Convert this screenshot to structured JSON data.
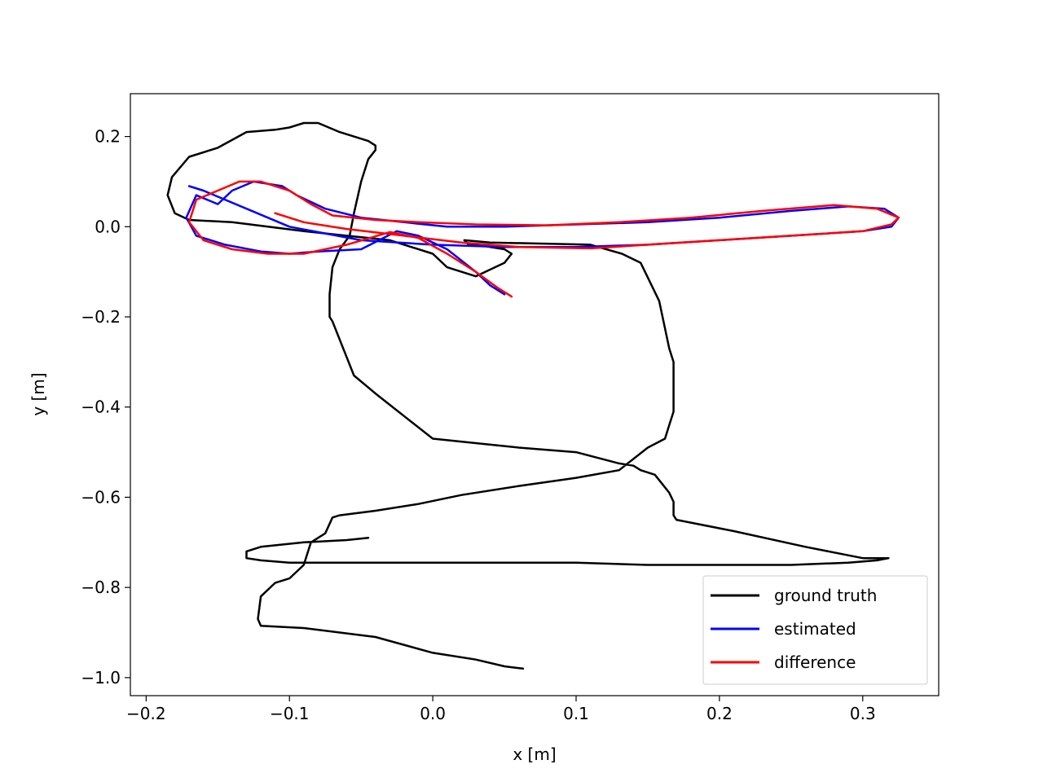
{
  "chart_data": {
    "type": "line",
    "title": "",
    "xlabel": "x [m]",
    "ylabel": "y [m]",
    "xlim": [
      -0.211,
      0.353
    ],
    "ylim": [
      -1.04,
      0.295
    ],
    "grid": false,
    "legend_position": "bottom-right",
    "xticks": [
      -0.2,
      -0.1,
      0.0,
      0.1,
      0.2,
      0.3
    ],
    "xtick_labels": [
      "−0.2",
      "−0.1",
      "0.0",
      "0.1",
      "0.2",
      "0.3"
    ],
    "yticks": [
      0.2,
      0.0,
      -0.2,
      -0.4,
      -0.6,
      -0.8,
      -1.0
    ],
    "ytick_labels": [
      "0.2",
      "0.0",
      "−0.2",
      "−0.4",
      "−0.6",
      "−0.8",
      "−1.0"
    ],
    "series": [
      {
        "name": "ground truth",
        "color": "#000000",
        "x": [
          0.063,
          0.05,
          0.03,
          0.0,
          -0.04,
          -0.09,
          -0.12,
          -0.122,
          -0.12,
          -0.11,
          -0.1,
          -0.09,
          -0.085,
          -0.075,
          -0.07,
          -0.065,
          -0.04,
          -0.01,
          0.02,
          0.06,
          0.1,
          0.13,
          0.15,
          0.162,
          0.165,
          0.168,
          0.168,
          0.165,
          0.158,
          0.145,
          0.132,
          0.11,
          0.04,
          0.022,
          0.025,
          0.03,
          0.05,
          0.055,
          0.05,
          0.03,
          0.01,
          0.0,
          -0.03,
          -0.06,
          -0.09,
          -0.115,
          -0.14,
          -0.17,
          -0.18,
          -0.185,
          -0.182,
          -0.17,
          -0.15,
          -0.13,
          -0.11,
          -0.1,
          -0.09,
          -0.08,
          -0.065,
          -0.045,
          -0.04,
          -0.04,
          -0.045,
          -0.05,
          -0.055,
          -0.058,
          -0.065,
          -0.07,
          -0.072,
          -0.072,
          -0.07,
          -0.065,
          -0.055,
          -0.04,
          -0.02,
          0.0,
          0.03,
          0.06,
          0.1,
          0.13,
          0.14,
          0.145,
          0.155,
          0.16,
          0.165,
          0.168,
          0.168,
          0.17,
          0.21,
          0.26,
          0.3,
          0.318,
          0.31,
          0.29,
          0.25,
          0.2,
          0.15,
          0.1,
          0.05,
          0.0,
          -0.05,
          -0.08,
          -0.1,
          -0.12,
          -0.13,
          -0.13,
          -0.12,
          -0.09,
          -0.06,
          -0.045
        ],
        "y": [
          -0.98,
          -0.975,
          -0.96,
          -0.945,
          -0.91,
          -0.89,
          -0.885,
          -0.87,
          -0.82,
          -0.79,
          -0.78,
          -0.75,
          -0.7,
          -0.68,
          -0.645,
          -0.64,
          -0.63,
          -0.615,
          -0.595,
          -0.575,
          -0.557,
          -0.54,
          -0.49,
          -0.47,
          -0.44,
          -0.41,
          -0.3,
          -0.27,
          -0.165,
          -0.08,
          -0.06,
          -0.04,
          -0.035,
          -0.03,
          -0.04,
          -0.04,
          -0.05,
          -0.06,
          -0.08,
          -0.11,
          -0.09,
          -0.06,
          -0.03,
          -0.02,
          -0.01,
          0.0,
          0.01,
          0.015,
          0.03,
          0.07,
          0.11,
          0.155,
          0.175,
          0.21,
          0.215,
          0.22,
          0.23,
          0.23,
          0.21,
          0.19,
          0.18,
          0.17,
          0.15,
          0.1,
          0.03,
          -0.02,
          -0.05,
          -0.09,
          -0.15,
          -0.2,
          -0.21,
          -0.25,
          -0.33,
          -0.37,
          -0.42,
          -0.47,
          -0.48,
          -0.49,
          -0.5,
          -0.525,
          -0.53,
          -0.54,
          -0.55,
          -0.57,
          -0.59,
          -0.61,
          -0.64,
          -0.65,
          -0.675,
          -0.71,
          -0.735,
          -0.735,
          -0.74,
          -0.745,
          -0.75,
          -0.75,
          -0.75,
          -0.745,
          -0.745,
          -0.745,
          -0.745,
          -0.745,
          -0.745,
          -0.74,
          -0.735,
          -0.72,
          -0.71,
          -0.7,
          -0.695,
          -0.69
        ]
      },
      {
        "name": "estimated",
        "color": "#0000ff",
        "x": [
          0.05,
          0.04,
          0.03,
          0.01,
          -0.01,
          -0.025,
          -0.05,
          -0.08,
          -0.1,
          -0.12,
          -0.145,
          -0.165,
          -0.172,
          -0.165,
          -0.15,
          -0.14,
          -0.125,
          -0.105,
          -0.095,
          -0.075,
          -0.05,
          -0.02,
          0.01,
          0.05,
          0.1,
          0.15,
          0.2,
          0.25,
          0.29,
          0.315,
          0.325,
          0.32,
          0.3,
          0.25,
          0.2,
          0.15,
          0.1,
          0.05,
          0.0,
          -0.05,
          -0.1,
          -0.13,
          -0.16,
          -0.17
        ],
        "y": [
          -0.15,
          -0.13,
          -0.1,
          -0.05,
          -0.02,
          -0.01,
          -0.05,
          -0.055,
          -0.06,
          -0.055,
          -0.04,
          -0.02,
          0.02,
          0.07,
          0.05,
          0.08,
          0.1,
          0.09,
          0.07,
          0.04,
          0.02,
          0.01,
          0.0,
          0.0,
          0.005,
          0.01,
          0.02,
          0.035,
          0.045,
          0.04,
          0.02,
          0.0,
          -0.01,
          -0.02,
          -0.03,
          -0.04,
          -0.045,
          -0.045,
          -0.04,
          -0.03,
          0.0,
          0.04,
          0.08,
          0.09
        ]
      },
      {
        "name": "difference",
        "color": "#ff0000",
        "x": [
          0.055,
          0.045,
          0.03,
          0.01,
          -0.01,
          -0.03,
          -0.06,
          -0.09,
          -0.115,
          -0.14,
          -0.16,
          -0.17,
          -0.165,
          -0.15,
          -0.135,
          -0.12,
          -0.1,
          -0.085,
          -0.07,
          -0.04,
          -0.01,
          0.03,
          0.08,
          0.13,
          0.18,
          0.23,
          0.28,
          0.31,
          0.325,
          0.32,
          0.3,
          0.25,
          0.2,
          0.15,
          0.11,
          0.06,
          0.02,
          -0.02,
          -0.06,
          -0.09,
          -0.11
        ],
        "y": [
          -0.155,
          -0.135,
          -0.1,
          -0.06,
          -0.025,
          -0.012,
          -0.04,
          -0.06,
          -0.06,
          -0.05,
          -0.03,
          0.01,
          0.06,
          0.08,
          0.1,
          0.1,
          0.08,
          0.05,
          0.025,
          0.015,
          0.01,
          0.005,
          0.003,
          0.01,
          0.02,
          0.035,
          0.048,
          0.04,
          0.02,
          0.005,
          -0.01,
          -0.02,
          -0.03,
          -0.04,
          -0.048,
          -0.045,
          -0.035,
          -0.02,
          -0.005,
          0.01,
          0.03
        ]
      }
    ]
  }
}
